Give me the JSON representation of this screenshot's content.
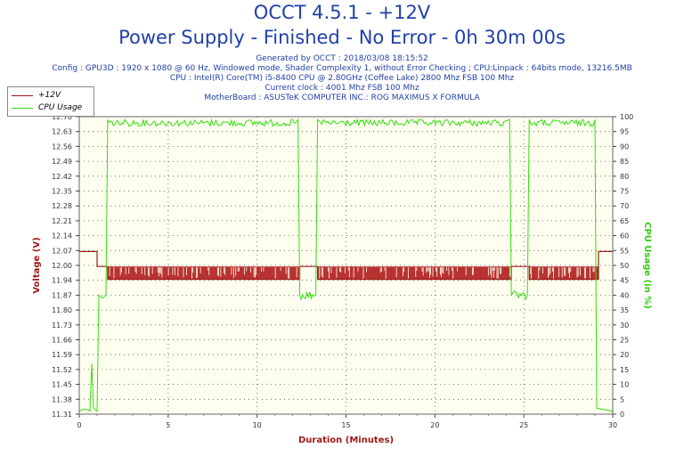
{
  "header": {
    "title": "OCCT 4.5.1 - +12V",
    "subtitle": "Power Supply - Finished - No Error - 0h 30m 00s",
    "info_lines": [
      "Generated by OCCT : 2018/03/08 18:15:52",
      "Config : GPU3D : 1920 x 1080 @ 60 Hz, Windowed mode, Shader Complexity 1, without Error Checking ; CPU:Linpack : 64bits mode, 13216.5MB",
      "CPU : Intel(R) Core(TM) i5-8400 CPU @ 2.80GHz (Coffee Lake) 2800 Mhz FSB 100 Mhz",
      "Current clock : 4001 Mhz FSB 100 Mhz",
      "MotherBoard : ASUSTeK COMPUTER INC.: ROG MAXIMUS X FORMULA"
    ]
  },
  "legend": {
    "items": [
      {
        "label": "+12V",
        "color": "#a01818"
      },
      {
        "label": "CPU Usage",
        "color": "#33dd11"
      }
    ]
  },
  "chart_data": {
    "type": "line",
    "xlabel": "Duration (Minutes)",
    "ylabel_left": "Voltage (V)",
    "ylabel_right": "CPU Usage (in %)",
    "xlim": [
      0,
      30
    ],
    "ylim_left": [
      11.31,
      12.7
    ],
    "ylim_right": [
      0,
      100
    ],
    "x_ticks": [
      0,
      5,
      10,
      15,
      20,
      25,
      30
    ],
    "y_left_ticks": [
      "11.31",
      "11.38",
      "11.45",
      "11.52",
      "11.59",
      "11.66",
      "11.73",
      "11.80",
      "11.87",
      "11.94",
      "12.00",
      "12.07",
      "12.14",
      "12.21",
      "12.28",
      "12.35",
      "12.42",
      "12.49",
      "12.56",
      "12.63",
      "12.70"
    ],
    "y_right_ticks": [
      0,
      5,
      10,
      15,
      20,
      25,
      30,
      35,
      40,
      45,
      50,
      55,
      60,
      65,
      70,
      75,
      80,
      85,
      90,
      95,
      100
    ],
    "grid": "dotted",
    "plot_background": "#fffff0",
    "series": [
      {
        "name": "+12V",
        "axis": "left",
        "color": "#a01818",
        "points": [
          [
            0,
            12.07
          ],
          [
            1.0,
            12.07
          ],
          [
            1.0,
            12.0
          ],
          [
            1.6,
            12.0
          ],
          [
            1.6,
            11.94
          ],
          [
            12.4,
            11.94
          ],
          [
            12.4,
            12.0
          ],
          [
            13.4,
            12.0
          ],
          [
            13.4,
            11.94
          ],
          [
            24.3,
            11.94
          ],
          [
            24.3,
            12.0
          ],
          [
            25.3,
            12.0
          ],
          [
            25.3,
            11.94
          ],
          [
            29.2,
            11.94
          ],
          [
            29.2,
            12.07
          ],
          [
            30,
            12.07
          ]
        ],
        "fluctuation_ranges": [
          [
            1.6,
            12.4
          ],
          [
            13.4,
            24.3
          ],
          [
            25.3,
            29.2
          ]
        ],
        "fluctuation_values": [
          11.94,
          12.0
        ]
      },
      {
        "name": "CPU Usage",
        "axis": "right",
        "color": "#33dd11",
        "points": [
          [
            0,
            1
          ],
          [
            0.6,
            1
          ],
          [
            0.7,
            17
          ],
          [
            0.8,
            2
          ],
          [
            1.0,
            1
          ],
          [
            1.1,
            40
          ],
          [
            1.3,
            39
          ],
          [
            1.5,
            40
          ],
          [
            1.6,
            99
          ],
          [
            12.3,
            99
          ],
          [
            12.4,
            40
          ],
          [
            13.3,
            40
          ],
          [
            13.4,
            99
          ],
          [
            24.2,
            99
          ],
          [
            24.3,
            40
          ],
          [
            25.2,
            40
          ],
          [
            25.3,
            99
          ],
          [
            29.0,
            99
          ],
          [
            29.1,
            2
          ],
          [
            30,
            1
          ]
        ]
      }
    ]
  }
}
